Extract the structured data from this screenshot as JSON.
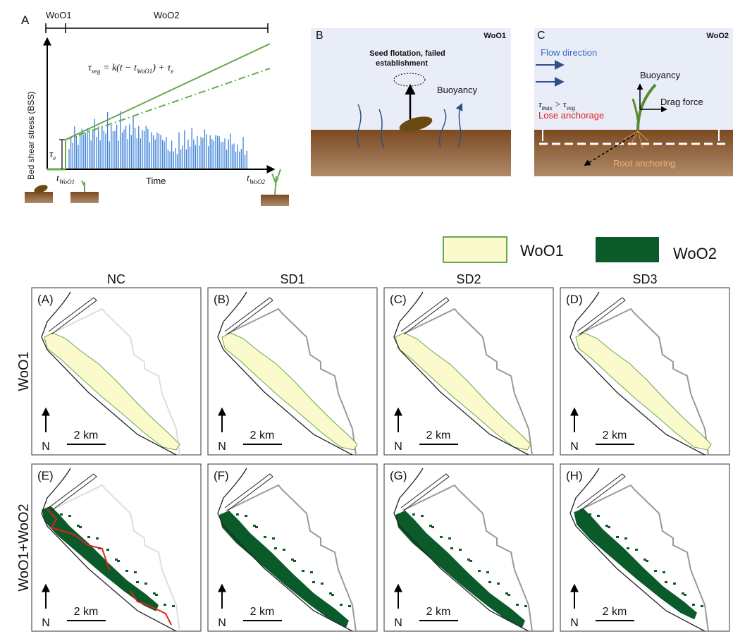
{
  "panel_a": {
    "label": "A",
    "windows": [
      "WoO1",
      "WoO2"
    ],
    "y_axis_label": "Bed shear stress (BSS)",
    "x_axis_label": "Time",
    "equation": [
      "τ",
      "veg",
      " = k(t − t",
      "WoO1",
      ") + τ",
      "e"
    ],
    "tau_e": [
      "τ",
      "e"
    ],
    "t_woo1": [
      "t",
      "WoO1"
    ],
    "t_woo2": [
      "t",
      "WoO2"
    ]
  },
  "panel_b": {
    "label": "B",
    "window": "WoO1",
    "annotation": [
      "Seed flotation, failed",
      "establishment"
    ],
    "force": "Buoyancy"
  },
  "panel_c": {
    "label": "C",
    "window": "WoO2",
    "flow": "Flow direction",
    "buoyancy": "Buoyancy",
    "drag": "Drag force",
    "condition": [
      "τ",
      "max",
      " > τ",
      "veg"
    ],
    "consequence": "Lose anchorage",
    "roots": "Root anchoring"
  },
  "legend": [
    "WoO1",
    "WoO2"
  ],
  "columns": [
    "NC",
    "SD1",
    "SD2",
    "SD3"
  ],
  "rows": [
    "WoO1",
    "WoO1+WoO2"
  ],
  "map_labels": [
    "(A)",
    "(B)",
    "(C)",
    "(D)",
    "(E)",
    "(F)",
    "(G)",
    "(H)"
  ],
  "north": "N",
  "scale_bar": "2 km"
}
